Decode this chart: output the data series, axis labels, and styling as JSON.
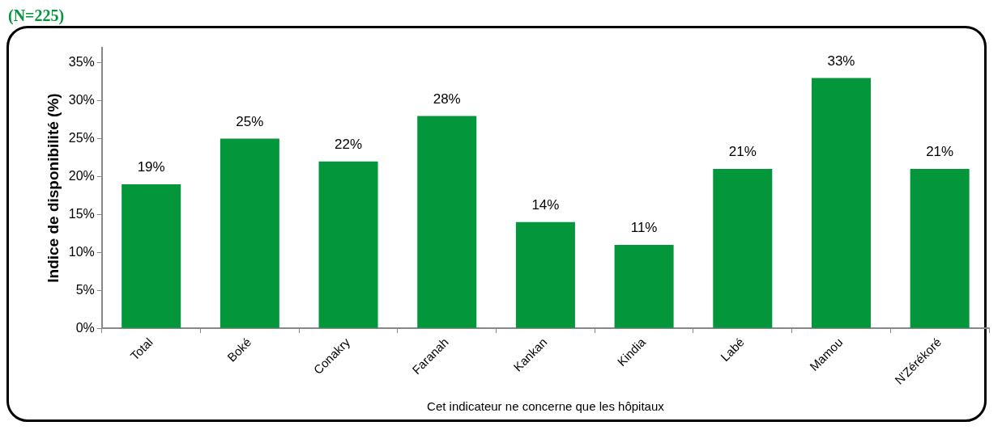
{
  "chart_data": {
    "type": "bar",
    "title": "(N=225)",
    "xlabel": "Cet indicateur ne concerne que les hôpitaux",
    "ylabel": "Indice de disponibilité (%)",
    "categories": [
      "Total",
      "Boké",
      "Conakry",
      "Faranah",
      "Kankan",
      "Kindia",
      "Labé",
      "Mamou",
      "N'Zérékoré"
    ],
    "values": [
      19,
      25,
      22,
      28,
      14,
      11,
      21,
      33,
      21
    ],
    "value_labels": [
      "19%",
      "25%",
      "22%",
      "28%",
      "14%",
      "11%",
      "21%",
      "33%",
      "21%"
    ],
    "color": "#03963a",
    "ylim": [
      0,
      37
    ],
    "yticks": [
      {
        "value": 0,
        "label": "0%"
      },
      {
        "value": 5,
        "label": "5%"
      },
      {
        "value": 10,
        "label": "10%"
      },
      {
        "value": 15,
        "label": "15%"
      },
      {
        "value": 20,
        "label": "20%"
      },
      {
        "value": 25,
        "label": "25%"
      },
      {
        "value": 30,
        "label": "30%"
      },
      {
        "value": 35,
        "label": "35%"
      }
    ],
    "grid": false,
    "legend": false
  }
}
